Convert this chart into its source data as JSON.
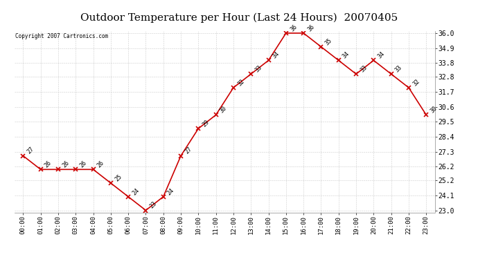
{
  "title": "Outdoor Temperature per Hour (Last 24 Hours)  20070405",
  "copyright_text": "Copyright 2007 Cartronics.com",
  "x_labels": [
    "00:00",
    "01:00",
    "02:00",
    "03:00",
    "04:00",
    "05:00",
    "06:00",
    "07:00",
    "08:00",
    "09:00",
    "10:00",
    "11:00",
    "12:00",
    "13:00",
    "14:00",
    "15:00",
    "16:00",
    "17:00",
    "18:00",
    "19:00",
    "20:00",
    "21:00",
    "22:00",
    "23:00"
  ],
  "temps_per_hour": [
    27,
    26,
    26,
    26,
    26,
    25,
    24,
    23,
    24,
    27,
    29,
    30,
    32,
    33,
    34,
    36,
    36,
    35,
    34,
    33,
    34,
    33,
    32,
    30
  ],
  "line_color": "#cc0000",
  "bg_color": "#ffffff",
  "grid_color": "#cccccc",
  "title_fontsize": 11,
  "ylim_min": 23.0,
  "ylim_max": 36.0,
  "yticks": [
    23.0,
    24.1,
    25.2,
    26.2,
    27.3,
    28.4,
    29.5,
    30.6,
    31.7,
    32.8,
    33.8,
    34.9,
    36.0
  ]
}
